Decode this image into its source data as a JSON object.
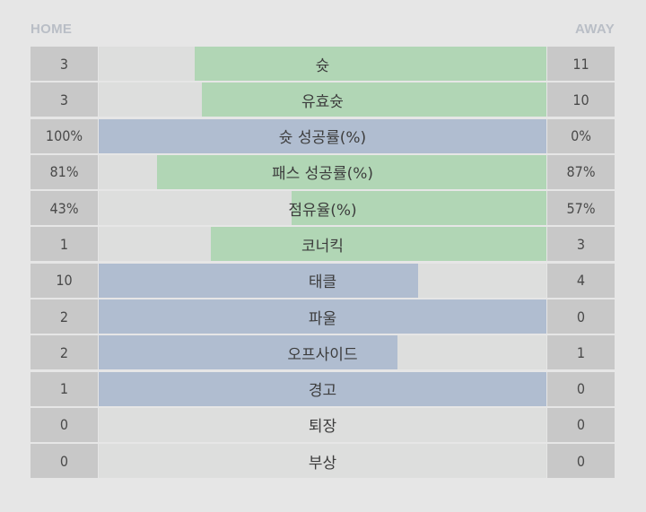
{
  "header": {
    "home_label": "HOME",
    "away_label": "AWAY"
  },
  "colors": {
    "home_fill": "#b0bdd0",
    "away_fill": "#b1d6b5",
    "bar_background": "#dddedd",
    "number_cell": "#c8c8c8"
  },
  "stats": [
    {
      "label": "슛",
      "home": "3",
      "away": "11",
      "home_share": 0,
      "away_share": 0.785
    },
    {
      "label": "유효슛",
      "home": "3",
      "away": "10",
      "home_share": 0,
      "away_share": 0.77
    },
    {
      "label": "슛 성공률(%)",
      "home": "100%",
      "away": "0%",
      "home_share": 1.0,
      "away_share": 0
    },
    {
      "label": "패스 성공률(%)",
      "home": "81%",
      "away": "87%",
      "home_share": 0,
      "away_share": 0.87
    },
    {
      "label": "점유율(%)",
      "home": "43%",
      "away": "57%",
      "home_share": 0,
      "away_share": 0.57
    },
    {
      "label": "코너킥",
      "home": "1",
      "away": "3",
      "home_share": 0,
      "away_share": 0.75
    },
    {
      "label": "태클",
      "home": "10",
      "away": "4",
      "home_share": 0.714,
      "away_share": 0
    },
    {
      "label": "파울",
      "home": "2",
      "away": "0",
      "home_share": 1.0,
      "away_share": 0
    },
    {
      "label": "오프사이드",
      "home": "2",
      "away": "1",
      "home_share": 0.667,
      "away_share": 0
    },
    {
      "label": "경고",
      "home": "1",
      "away": "0",
      "home_share": 1.0,
      "away_share": 0
    },
    {
      "label": "퇴장",
      "home": "0",
      "away": "0",
      "home_share": 0,
      "away_share": 0
    },
    {
      "label": "부상",
      "home": "0",
      "away": "0",
      "home_share": 0,
      "away_share": 0
    }
  ]
}
